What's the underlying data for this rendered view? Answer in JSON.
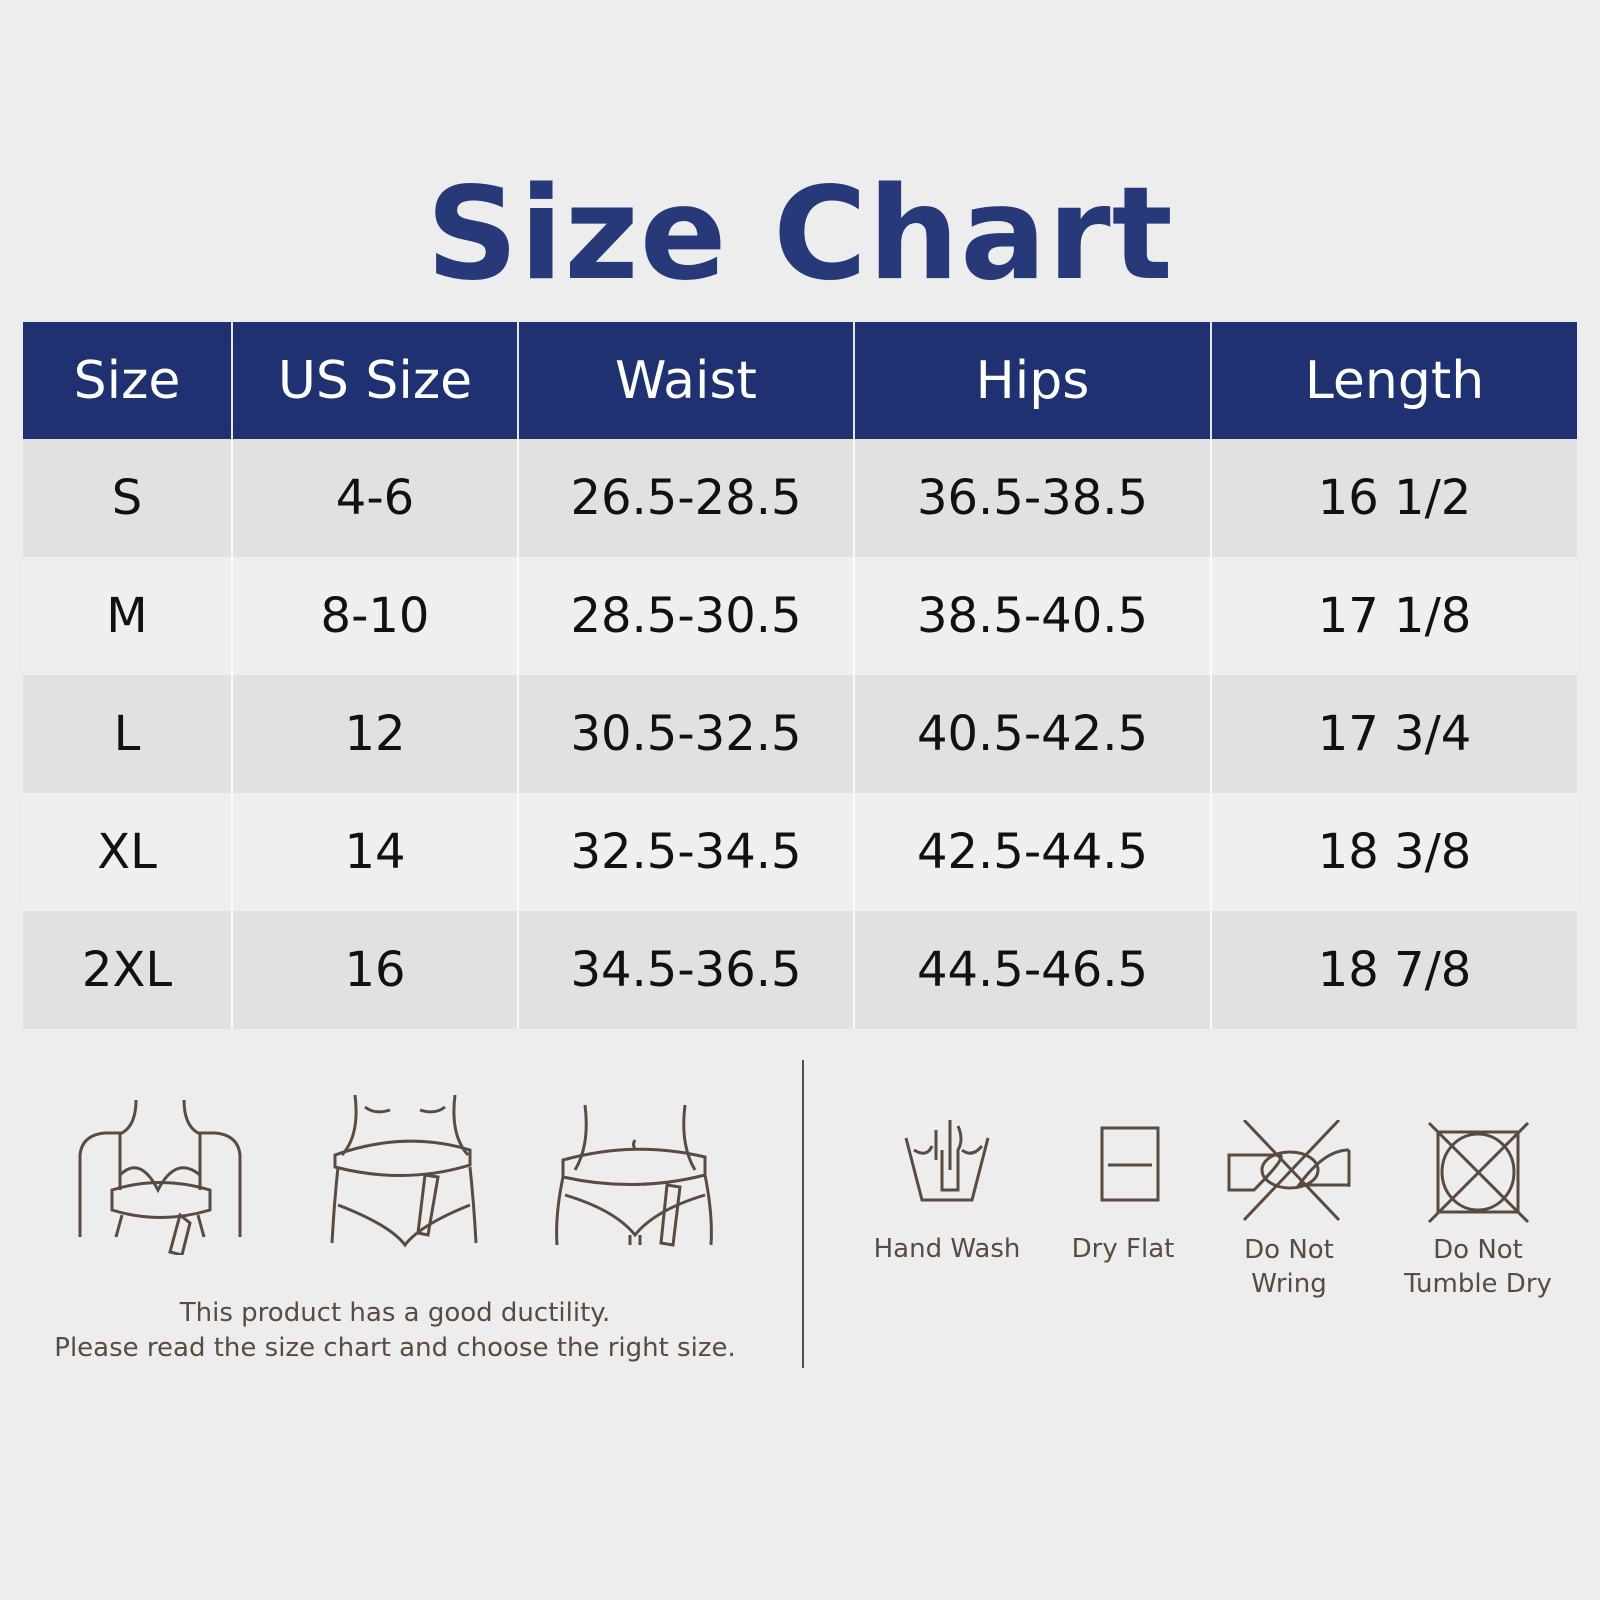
{
  "title": "Size Chart",
  "table": {
    "headers": [
      "Size",
      "US Size",
      "Waist",
      "Hips",
      "Length"
    ],
    "rows": [
      [
        "S",
        "4-6",
        "26.5-28.5",
        "36.5-38.5",
        "16 1/2"
      ],
      [
        "M",
        "8-10",
        "28.5-30.5",
        "38.5-40.5",
        "17 1/8"
      ],
      [
        "L",
        "12",
        "30.5-32.5",
        "40.5-42.5",
        "17 3/4"
      ],
      [
        "XL",
        "14",
        "32.5-34.5",
        "42.5-44.5",
        "18 3/8"
      ],
      [
        "2XL",
        "16",
        "34.5-36.5",
        "44.5-46.5",
        "18 7/8"
      ]
    ]
  },
  "measure_figures": [
    "bust-measure-icon",
    "waist-measure-icon",
    "hip-measure-icon"
  ],
  "note": {
    "line1": "This product has a good ductility.",
    "line2": "Please read the size chart and choose the right size."
  },
  "care": [
    {
      "icon": "hand-wash-icon",
      "line1": "Hand Wash",
      "line2": ""
    },
    {
      "icon": "dry-flat-icon",
      "line1": "Dry Flat",
      "line2": ""
    },
    {
      "icon": "do-not-wring-icon",
      "line1": "Do Not",
      "line2": "Wring"
    },
    {
      "icon": "do-not-tumble-dry-icon",
      "line1": "Do Not",
      "line2": "Tumble Dry"
    }
  ],
  "colors": {
    "header": "#1f3171",
    "title": "#28397a",
    "icon": "#5b4a3f",
    "background": "#ededed"
  }
}
